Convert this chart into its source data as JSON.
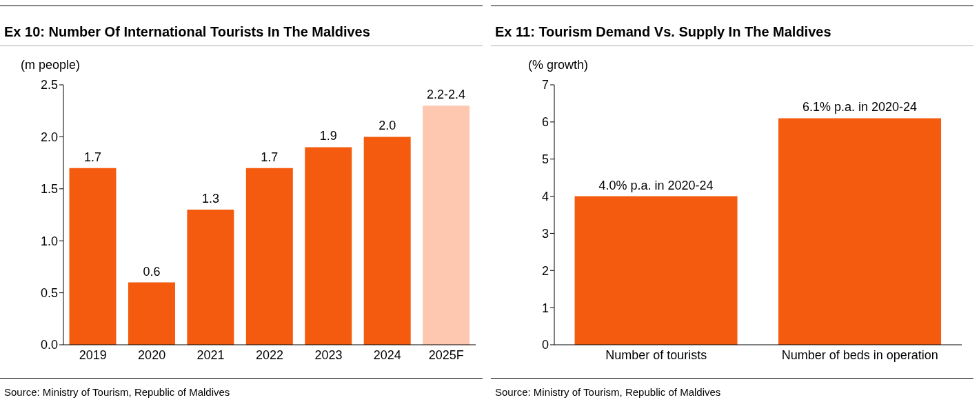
{
  "chart_data": [
    {
      "type": "bar",
      "title": "Ex 10: Number Of International Tourists In The Maldives",
      "ylabel": "(m people)",
      "categories": [
        "2019",
        "2020",
        "2021",
        "2022",
        "2023",
        "2024",
        "2025F"
      ],
      "values": [
        1.7,
        0.6,
        1.3,
        1.7,
        1.9,
        2.0,
        2.3
      ],
      "colors": [
        "#f45b0e",
        "#f45b0e",
        "#f45b0e",
        "#f45b0e",
        "#f45b0e",
        "#f45b0e",
        "#fdc8af"
      ],
      "value_labels": [
        "1.7",
        "0.6",
        "1.3",
        "1.7",
        "1.9",
        "2.0",
        "2.2-2.4"
      ],
      "ylim": [
        0,
        2.5
      ],
      "yticks": [
        {
          "value": 0,
          "label": "0.0"
        },
        {
          "value": 0.5,
          "label": "0.5"
        },
        {
          "value": 1,
          "label": "1.0"
        },
        {
          "value": 1.5,
          "label": "1.5"
        },
        {
          "value": 2,
          "label": "2.0"
        },
        {
          "value": 2.5,
          "label": "2.5"
        }
      ],
      "annotations": [
        "Source: Ministry of Tourism, Republic of Maldives"
      ]
    },
    {
      "type": "bar",
      "title": "Ex 11: Tourism Demand Vs. Supply In The Maldives",
      "ylabel": "(% growth)",
      "categories": [
        "Number of tourists",
        "Number of beds in operation"
      ],
      "values": [
        4.0,
        6.1
      ],
      "colors": [
        "#f45b0e",
        "#f45b0e"
      ],
      "value_labels": [
        "4.0% p.a. in 2020-24",
        "6.1% p.a. in 2020-24"
      ],
      "ylim": [
        0,
        7
      ],
      "yticks": [
        0,
        1,
        2,
        3,
        4,
        5,
        6,
        7
      ],
      "annotations": [
        "Source: Ministry of Tourism, Republic of Maldives"
      ]
    }
  ]
}
